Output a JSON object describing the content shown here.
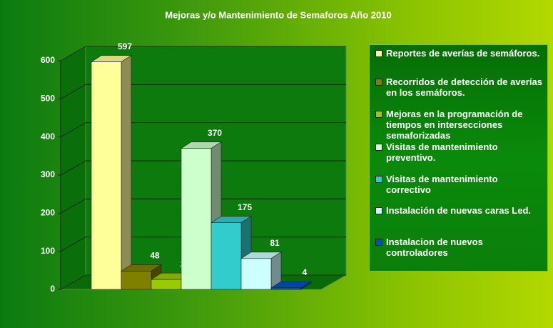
{
  "chart_data": {
    "type": "bar",
    "title": "Mejoras y/o Mantenimiento de Semaforos Año 2010",
    "series": [
      {
        "name": "Reportes de averías de semáforos.",
        "color": "#ffff99",
        "values": [
          597
        ]
      },
      {
        "name": "Recorridos de detección de averías en los semáforos.",
        "color": "#808000",
        "values": [
          48
        ]
      },
      {
        "name": "Mejoras  en la programación de tiempos en intersecciones semaforizadas",
        "color": "#99cc00",
        "values": [
          26
        ]
      },
      {
        "name": "Visitas de mantenimiento preventivo.",
        "color": "#ccffcc",
        "values": [
          370
        ]
      },
      {
        "name": "Visitas de mantenimiento correctivo",
        "color": "#33cccc",
        "values": [
          175
        ]
      },
      {
        "name": "Instalación de nuevas caras Led.",
        "color": "#ccffff",
        "values": [
          81
        ]
      },
      {
        "name": "Instalacion de nuevos controladores",
        "color": "#0055bb",
        "values": [
          4
        ]
      }
    ],
    "ylim": [
      0,
      600
    ],
    "yticks": [
      0,
      100,
      200,
      300,
      400,
      500,
      600
    ],
    "grid": true
  }
}
